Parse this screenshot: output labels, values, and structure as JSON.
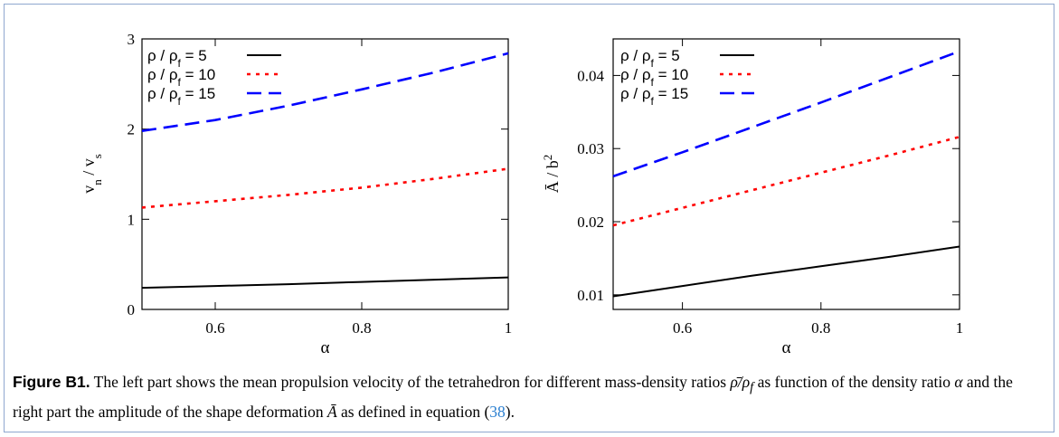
{
  "chart_data": [
    {
      "type": "line",
      "xlabel": "α",
      "ylabel_main": "v",
      "ylabel_sub1": "n",
      "ylabel_mid": " / v",
      "ylabel_sub2": "s",
      "xlim": [
        0.5,
        1.0
      ],
      "ylim": [
        0,
        3
      ],
      "x_ticks": [
        0.6,
        0.8,
        1
      ],
      "x_tick_labels": [
        "0.6",
        "0.8",
        "1"
      ],
      "y_ticks": [
        0,
        1,
        2,
        3
      ],
      "y_tick_labels": [
        "0",
        "1",
        "2",
        "3"
      ],
      "grid": false,
      "legend_position": "top-left",
      "series": [
        {
          "legend_prefix": "ρ / ρ",
          "legend_sub": "f",
          "legend_suffix": " =  5",
          "color": "#000000",
          "dash": "solid",
          "x": [
            0.5,
            0.6,
            0.7,
            0.8,
            0.9,
            1.0
          ],
          "values": [
            0.24,
            0.26,
            0.28,
            0.305,
            0.33,
            0.355
          ]
        },
        {
          "legend_prefix": "ρ / ρ",
          "legend_sub": "f",
          "legend_suffix": " = 10",
          "color": "#ff0000",
          "dash": "dotted",
          "x": [
            0.5,
            0.6,
            0.7,
            0.8,
            0.9,
            1.0
          ],
          "values": [
            1.13,
            1.2,
            1.27,
            1.35,
            1.45,
            1.56
          ]
        },
        {
          "legend_prefix": "ρ / ρ",
          "legend_sub": "f",
          "legend_suffix": " = 15",
          "color": "#0000ff",
          "dash": "dashed",
          "x": [
            0.5,
            0.6,
            0.7,
            0.8,
            0.9,
            1.0
          ],
          "values": [
            1.98,
            2.1,
            2.26,
            2.44,
            2.63,
            2.84
          ]
        }
      ]
    },
    {
      "type": "line",
      "xlabel": "α",
      "ylabel_main": "Ā",
      "ylabel_mid": " / b",
      "ylabel_sup": "2",
      "xlim": [
        0.5,
        1.0
      ],
      "ylim": [
        0.008,
        0.045
      ],
      "x_ticks": [
        0.6,
        0.8,
        1
      ],
      "x_tick_labels": [
        "0.6",
        "0.8",
        "1"
      ],
      "y_ticks": [
        0.01,
        0.02,
        0.03,
        0.04
      ],
      "y_tick_labels": [
        "0.01",
        "0.02",
        "0.03",
        "0.04"
      ],
      "grid": false,
      "legend_position": "top-left",
      "series": [
        {
          "legend_prefix": "ρ / ρ",
          "legend_sub": "f",
          "legend_suffix": " =  5",
          "color": "#000000",
          "dash": "solid",
          "x": [
            0.5,
            0.6,
            0.7,
            0.8,
            0.9,
            1.0
          ],
          "values": [
            0.0098,
            0.0112,
            0.0126,
            0.0139,
            0.0152,
            0.0166
          ]
        },
        {
          "legend_prefix": "ρ / ρ",
          "legend_sub": "f",
          "legend_suffix": " = 10",
          "color": "#ff0000",
          "dash": "dotted",
          "x": [
            0.5,
            0.6,
            0.7,
            0.8,
            0.9,
            1.0
          ],
          "values": [
            0.0195,
            0.0219,
            0.0243,
            0.0267,
            0.0291,
            0.0316
          ]
        },
        {
          "legend_prefix": "ρ / ρ",
          "legend_sub": "f",
          "legend_suffix": " = 15",
          "color": "#0000ff",
          "dash": "dashed",
          "x": [
            0.5,
            0.6,
            0.7,
            0.8,
            0.9,
            1.0
          ],
          "values": [
            0.0262,
            0.0295,
            0.0329,
            0.0363,
            0.0398,
            0.0433
          ]
        }
      ]
    }
  ],
  "caption": {
    "label": "Figure B1.",
    "text_a": " The left part shows the mean propulsion velocity of the tetrahedron for different mass-density ratios ",
    "math_ratio": "ρ̄/ρ",
    "math_ratio_sub": "f",
    "text_b": " as function of the density ratio ",
    "math_alpha": "α",
    "text_c": " and the right part the amplitude of the shape deformation ",
    "math_amp": "Ā",
    "text_d": " as defined in equation (",
    "eq_ref": "38",
    "text_e": ")."
  }
}
